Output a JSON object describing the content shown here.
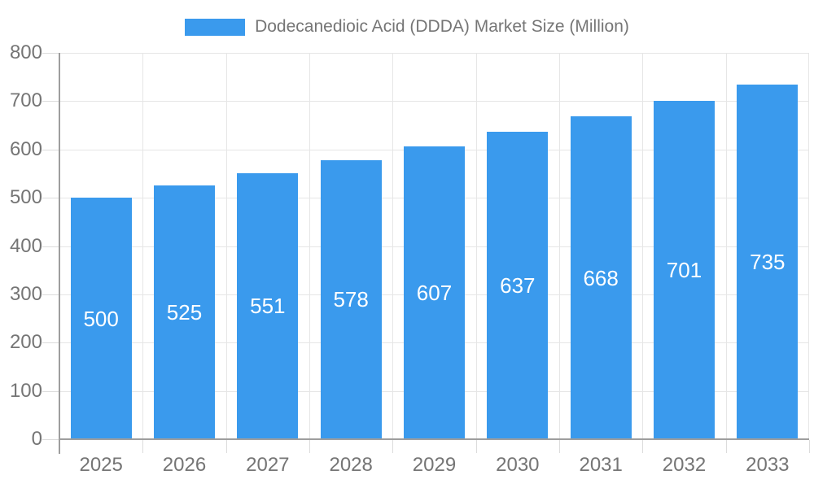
{
  "legend": {
    "series_label": "Dodecanedioic Acid (DDDA) Market Size (Million)"
  },
  "colors": {
    "bar": "#3A9AED",
    "axis_text": "#757575",
    "grid_line": "#E6E6E6",
    "tick_line": "#DCDCDC",
    "axis_line": "#9E9E9E",
    "value_label": "#FFFFFF",
    "background": "#FFFFFF"
  },
  "chart_data": {
    "type": "bar",
    "title": "Dodecanedioic Acid (DDDA) Market Size (Million)",
    "legend_entries": [
      "Dodecanedioic Acid (DDDA) Market Size (Million)"
    ],
    "legend_position": "top-center",
    "categories": [
      "2025",
      "2026",
      "2027",
      "2028",
      "2029",
      "2030",
      "2031",
      "2032",
      "2033"
    ],
    "values": [
      500,
      525,
      551,
      578,
      607,
      637,
      668,
      701,
      735
    ],
    "value_labels_visible": true,
    "value_label_position": "inside-middle",
    "xlabel": "",
    "ylabel": "",
    "ylim": [
      0,
      800
    ],
    "yticks": [
      0,
      100,
      200,
      300,
      400,
      500,
      600,
      700,
      800
    ],
    "grid": "on"
  }
}
